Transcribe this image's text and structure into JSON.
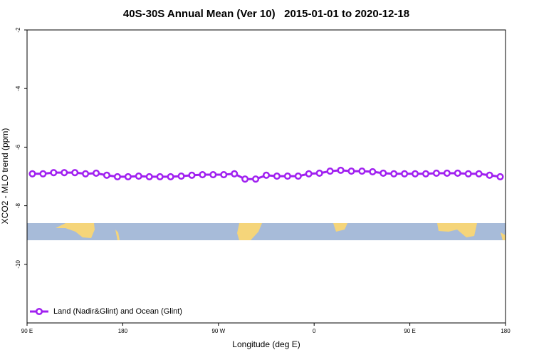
{
  "chart_data": {
    "type": "line",
    "title": "40S-30S Annual Mean (Ver 10)   2015-01-01 to 2020-12-18",
    "x_label": "Longitude (deg E)",
    "y_label": "XCO2 - MLO trend (ppm)",
    "xlim": [
      90,
      540
    ],
    "xticks": [
      {
        "value": 90,
        "label": "90 E"
      },
      {
        "value": 180,
        "label": "180"
      },
      {
        "value": 270,
        "label": "90 W"
      },
      {
        "value": 360,
        "label": "0"
      },
      {
        "value": 450,
        "label": "90 E"
      },
      {
        "value": 540,
        "label": "180"
      }
    ],
    "ylim": [
      -12,
      -2
    ],
    "yticks": [
      -2,
      -4,
      -6,
      -8,
      -10
    ],
    "legend": "bottom-left",
    "x": [
      95,
      105,
      115,
      125,
      135,
      145,
      155,
      165,
      175,
      185,
      195,
      205,
      215,
      225,
      235,
      245,
      255,
      265,
      275,
      285,
      295,
      305,
      315,
      325,
      335,
      345,
      355,
      365,
      375,
      385,
      395,
      405,
      415,
      425,
      435,
      445,
      455,
      465,
      475,
      485,
      495,
      505,
      515,
      525,
      535
    ],
    "series": [
      {
        "name": "Land (Nadir&Glint) and Ocean (Glint)",
        "color": "#a020f0",
        "values": [
          -6.91,
          -6.91,
          -6.87,
          -6.87,
          -6.87,
          -6.91,
          -6.89,
          -6.96,
          -7.01,
          -7.01,
          -6.99,
          -7.01,
          -7.01,
          -7.01,
          -6.99,
          -6.96,
          -6.94,
          -6.94,
          -6.94,
          -6.91,
          -7.09,
          -7.09,
          -6.96,
          -6.99,
          -6.99,
          -6.99,
          -6.91,
          -6.89,
          -6.82,
          -6.79,
          -6.82,
          -6.82,
          -6.84,
          -6.89,
          -6.91,
          -6.91,
          -6.91,
          -6.91,
          -6.89,
          -6.89,
          -6.89,
          -6.91,
          -6.91,
          -6.96,
          -7.01
        ]
      }
    ]
  }
}
